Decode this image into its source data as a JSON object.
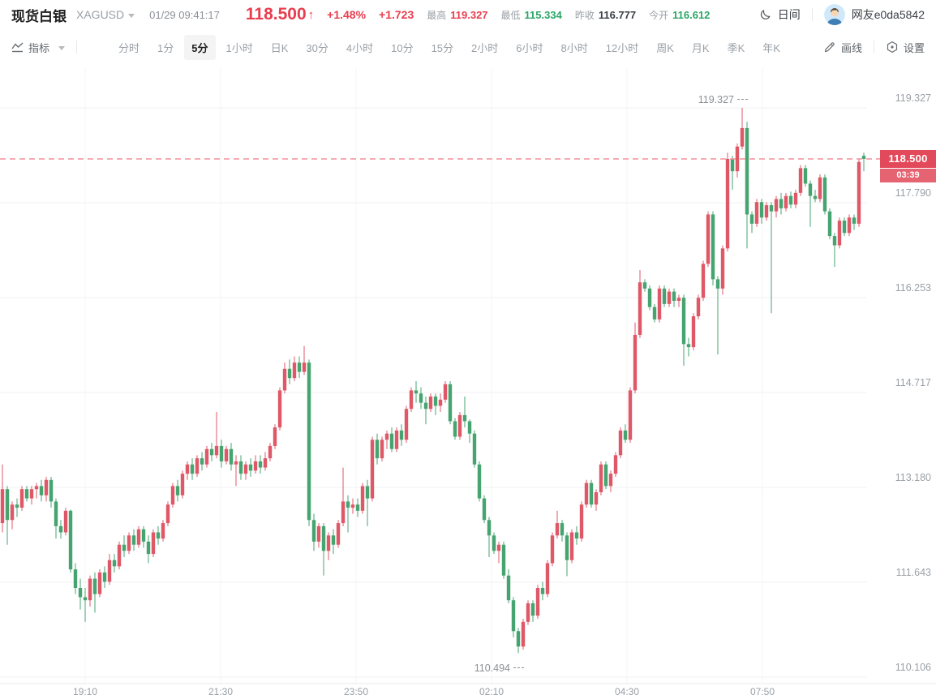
{
  "header": {
    "title": "现货白银",
    "symbol": "XAGUSD",
    "datetime": "01/29 09:41:17",
    "price": "118.500",
    "arrow": "↑",
    "change_pct": "+1.48%",
    "change_abs": "+1.723",
    "stats": {
      "high_label": "最高",
      "high": "119.327",
      "low_label": "最低",
      "low": "115.334",
      "prev_close_label": "昨收",
      "prev_close": "116.777",
      "open_label": "今开",
      "open": "116.612"
    },
    "theme_toggle_label": "日间",
    "username": "网友e0da5842"
  },
  "toolbar": {
    "indicator_label": "指标",
    "timeframes": [
      "分时",
      "1分",
      "5分",
      "1小时",
      "日K",
      "30分",
      "4小时",
      "10分",
      "15分",
      "2小时",
      "6小时",
      "8小时",
      "12小时",
      "周K",
      "月K",
      "季K",
      "年K"
    ],
    "active_timeframe": "5分",
    "draw_label": "画线",
    "settings_label": "设置"
  },
  "chart_data": {
    "type": "candlestick",
    "symbol": "XAGUSD",
    "interval": "5分",
    "current_price": "118.500",
    "current_price_value": 118.5,
    "countdown": "03:39",
    "up_color": "#df5868",
    "down_color": "#46a470",
    "y_axis_top_value": 119.327,
    "y_axis_step_value": 1.537,
    "y_axis_labels": [
      "119.327",
      "117.790",
      "116.253",
      "114.717",
      "113.180",
      "111.643",
      "110.106"
    ],
    "x_axis_labels": [
      "19:10",
      "21:30",
      "23:50",
      "02:10",
      "04:30",
      "07:50"
    ],
    "annotations": {
      "high": {
        "text": "119.327",
        "candle_index": 152
      },
      "low": {
        "text": "110.494",
        "candle_index": 106
      }
    },
    "candles": [
      [
        112.6,
        113.55,
        112.45,
        113.15
      ],
      [
        113.15,
        113.2,
        112.25,
        112.65
      ],
      [
        112.65,
        112.95,
        112.5,
        112.9
      ],
      [
        112.9,
        113.0,
        112.7,
        112.85
      ],
      [
        112.85,
        113.2,
        112.8,
        113.15
      ],
      [
        113.15,
        113.2,
        112.95,
        113.0
      ],
      [
        113.0,
        113.2,
        112.9,
        113.15
      ],
      [
        113.15,
        113.25,
        113.0,
        113.2
      ],
      [
        113.2,
        113.3,
        112.95,
        113.05
      ],
      [
        113.05,
        113.35,
        112.95,
        113.3
      ],
      [
        113.3,
        113.35,
        112.85,
        112.95
      ],
      [
        112.95,
        113.0,
        112.35,
        112.55
      ],
      [
        112.55,
        112.65,
        112.35,
        112.45
      ],
      [
        112.45,
        112.85,
        112.4,
        112.8
      ],
      [
        112.8,
        112.82,
        111.8,
        111.85
      ],
      [
        111.85,
        111.95,
        111.45,
        111.55
      ],
      [
        111.55,
        111.7,
        111.2,
        111.4
      ],
      [
        111.4,
        111.55,
        111.0,
        111.35
      ],
      [
        111.35,
        111.75,
        111.25,
        111.7
      ],
      [
        111.7,
        111.8,
        111.15,
        111.45
      ],
      [
        111.45,
        111.85,
        111.4,
        111.8
      ],
      [
        111.8,
        111.9,
        111.55,
        111.65
      ],
      [
        111.65,
        112.1,
        111.6,
        112.0
      ],
      [
        112.0,
        112.1,
        111.8,
        111.9
      ],
      [
        111.9,
        112.3,
        111.85,
        112.25
      ],
      [
        112.25,
        112.4,
        112.05,
        112.15
      ],
      [
        112.15,
        112.45,
        112.1,
        112.4
      ],
      [
        112.4,
        112.5,
        112.15,
        112.25
      ],
      [
        112.25,
        112.55,
        112.2,
        112.5
      ],
      [
        112.5,
        112.55,
        112.2,
        112.3
      ],
      [
        112.3,
        112.4,
        111.95,
        112.1
      ],
      [
        112.1,
        112.5,
        112.05,
        112.45
      ],
      [
        112.45,
        112.55,
        112.25,
        112.35
      ],
      [
        112.35,
        112.65,
        112.3,
        112.6
      ],
      [
        112.6,
        112.95,
        112.55,
        112.9
      ],
      [
        112.9,
        113.25,
        112.85,
        113.2
      ],
      [
        113.2,
        113.3,
        112.95,
        113.05
      ],
      [
        113.05,
        113.45,
        113.0,
        113.4
      ],
      [
        113.4,
        113.6,
        113.3,
        113.55
      ],
      [
        113.55,
        113.65,
        113.3,
        113.4
      ],
      [
        113.4,
        113.7,
        113.35,
        113.65
      ],
      [
        113.65,
        113.75,
        113.45,
        113.55
      ],
      [
        113.55,
        113.85,
        113.5,
        113.8
      ],
      [
        113.8,
        113.9,
        113.6,
        113.7
      ],
      [
        113.7,
        114.4,
        113.65,
        113.85
      ],
      [
        113.85,
        113.95,
        113.5,
        113.6
      ],
      [
        113.6,
        113.85,
        113.55,
        113.8
      ],
      [
        113.8,
        113.9,
        113.45,
        113.55
      ],
      [
        113.55,
        113.7,
        113.2,
        113.6
      ],
      [
        113.6,
        113.7,
        113.3,
        113.4
      ],
      [
        113.4,
        113.6,
        113.3,
        113.55
      ],
      [
        113.55,
        113.65,
        113.35,
        113.45
      ],
      [
        113.45,
        113.7,
        113.4,
        113.6
      ],
      [
        113.6,
        113.7,
        113.4,
        113.5
      ],
      [
        113.5,
        113.75,
        113.45,
        113.65
      ],
      [
        113.65,
        113.9,
        113.6,
        113.85
      ],
      [
        113.85,
        114.2,
        113.8,
        114.15
      ],
      [
        114.15,
        114.8,
        114.1,
        114.75
      ],
      [
        114.75,
        115.2,
        114.7,
        115.1
      ],
      [
        115.1,
        115.25,
        114.85,
        114.95
      ],
      [
        114.95,
        115.3,
        114.9,
        115.2
      ],
      [
        115.2,
        115.3,
        114.95,
        115.05
      ],
      [
        115.05,
        115.47,
        115.0,
        115.2
      ],
      [
        115.2,
        115.25,
        112.55,
        112.65
      ],
      [
        112.65,
        112.75,
        112.15,
        112.3
      ],
      [
        112.3,
        112.6,
        112.2,
        112.55
      ],
      [
        112.55,
        112.6,
        111.75,
        112.15
      ],
      [
        112.15,
        112.45,
        112.0,
        112.4
      ],
      [
        112.4,
        112.5,
        112.1,
        112.25
      ],
      [
        112.25,
        112.65,
        112.2,
        112.6
      ],
      [
        112.6,
        113.5,
        112.55,
        112.95
      ],
      [
        112.95,
        113.05,
        112.45,
        112.85
      ],
      [
        112.85,
        113.0,
        112.75,
        112.9
      ],
      [
        112.9,
        113.0,
        112.7,
        112.8
      ],
      [
        112.8,
        113.25,
        112.75,
        113.2
      ],
      [
        113.2,
        113.3,
        112.55,
        113.0
      ],
      [
        113.0,
        114.0,
        112.95,
        113.95
      ],
      [
        113.95,
        114.05,
        113.55,
        113.65
      ],
      [
        113.65,
        114.0,
        113.6,
        113.95
      ],
      [
        113.95,
        114.1,
        113.8,
        114.05
      ],
      [
        114.05,
        114.15,
        113.75,
        113.8
      ],
      [
        113.8,
        114.15,
        113.75,
        114.1
      ],
      [
        114.1,
        114.2,
        113.85,
        113.95
      ],
      [
        113.95,
        114.5,
        113.9,
        114.45
      ],
      [
        114.45,
        114.8,
        114.4,
        114.75
      ],
      [
        114.75,
        114.9,
        114.55,
        114.7
      ],
      [
        114.7,
        114.8,
        114.45,
        114.55
      ],
      [
        114.55,
        114.65,
        114.2,
        114.45
      ],
      [
        114.45,
        114.7,
        114.4,
        114.65
      ],
      [
        114.65,
        114.7,
        114.35,
        114.5
      ],
      [
        114.5,
        114.7,
        114.4,
        114.6
      ],
      [
        114.6,
        114.9,
        114.55,
        114.85
      ],
      [
        114.85,
        114.9,
        114.2,
        114.25
      ],
      [
        114.25,
        114.3,
        113.95,
        114.0
      ],
      [
        114.0,
        114.4,
        113.95,
        114.35
      ],
      [
        114.35,
        114.65,
        114.15,
        114.25
      ],
      [
        114.25,
        114.28,
        113.9,
        114.05
      ],
      [
        114.05,
        114.1,
        113.5,
        113.55
      ],
      [
        113.55,
        113.6,
        112.95,
        113.0
      ],
      [
        113.0,
        113.05,
        112.6,
        112.65
      ],
      [
        112.65,
        112.7,
        112.05,
        112.4
      ],
      [
        112.4,
        112.45,
        112.1,
        112.15
      ],
      [
        112.15,
        112.3,
        111.95,
        112.25
      ],
      [
        112.25,
        112.3,
        111.7,
        111.75
      ],
      [
        111.75,
        111.85,
        111.3,
        111.35
      ],
      [
        111.35,
        111.4,
        110.75,
        110.85
      ],
      [
        110.85,
        110.9,
        110.494,
        110.6
      ],
      [
        110.6,
        111.05,
        110.55,
        111.0
      ],
      [
        111.0,
        111.35,
        110.95,
        111.3
      ],
      [
        111.3,
        111.35,
        111.0,
        111.1
      ],
      [
        111.1,
        111.6,
        111.05,
        111.55
      ],
      [
        111.55,
        111.65,
        111.35,
        111.45
      ],
      [
        111.45,
        112.0,
        111.4,
        111.95
      ],
      [
        111.95,
        112.45,
        111.9,
        112.4
      ],
      [
        112.4,
        112.8,
        112.35,
        112.6
      ],
      [
        112.6,
        112.65,
        112.3,
        112.4
      ],
      [
        112.4,
        112.45,
        111.74,
        112.0
      ],
      [
        112.0,
        112.5,
        111.95,
        112.45
      ],
      [
        112.45,
        112.55,
        112.25,
        112.35
      ],
      [
        112.35,
        112.95,
        112.3,
        112.9
      ],
      [
        112.9,
        113.3,
        112.85,
        113.25
      ],
      [
        113.25,
        113.3,
        112.85,
        112.9
      ],
      [
        112.9,
        113.15,
        112.8,
        113.1
      ],
      [
        113.1,
        113.6,
        113.05,
        113.55
      ],
      [
        113.55,
        113.6,
        113.15,
        113.2
      ],
      [
        113.2,
        113.45,
        113.1,
        113.4
      ],
      [
        113.4,
        113.75,
        113.35,
        113.7
      ],
      [
        113.7,
        114.15,
        113.65,
        114.1
      ],
      [
        114.1,
        114.2,
        113.9,
        113.95
      ],
      [
        113.95,
        114.8,
        113.9,
        114.75
      ],
      [
        114.75,
        115.85,
        114.7,
        115.65
      ],
      [
        115.65,
        116.7,
        115.6,
        116.5
      ],
      [
        116.5,
        116.55,
        116.35,
        116.4
      ],
      [
        116.4,
        116.45,
        116.05,
        116.1
      ],
      [
        116.1,
        116.15,
        115.85,
        115.9
      ],
      [
        115.9,
        116.45,
        115.85,
        116.4
      ],
      [
        116.4,
        116.45,
        116.1,
        116.15
      ],
      [
        116.15,
        116.4,
        116.1,
        116.35
      ],
      [
        116.35,
        116.4,
        116.1,
        116.2
      ],
      [
        116.2,
        116.3,
        116.1,
        116.25
      ],
      [
        116.25,
        116.3,
        115.15,
        115.5
      ],
      [
        115.5,
        115.6,
        115.3,
        115.45
      ],
      [
        115.45,
        116.0,
        115.4,
        115.95
      ],
      [
        115.95,
        116.3,
        115.9,
        116.25
      ],
      [
        116.25,
        116.85,
        116.2,
        116.8
      ],
      [
        116.8,
        117.65,
        116.75,
        117.6
      ],
      [
        117.6,
        117.65,
        116.45,
        116.55
      ],
      [
        116.55,
        116.6,
        115.334,
        116.4
      ],
      [
        116.4,
        117.1,
        116.3,
        117.05
      ],
      [
        117.05,
        118.6,
        117.0,
        118.5
      ],
      [
        118.5,
        118.55,
        118.0,
        118.3
      ],
      [
        118.3,
        118.75,
        118.2,
        118.7
      ],
      [
        118.7,
        119.327,
        118.65,
        119.0
      ],
      [
        119.0,
        119.1,
        117.05,
        117.6
      ],
      [
        117.6,
        117.65,
        117.3,
        117.45
      ],
      [
        117.45,
        117.85,
        117.4,
        117.8
      ],
      [
        117.8,
        117.85,
        117.45,
        117.55
      ],
      [
        117.55,
        117.8,
        117.5,
        117.75
      ],
      [
        117.75,
        117.8,
        116.0,
        117.65
      ],
      [
        117.65,
        117.9,
        117.55,
        117.85
      ],
      [
        117.85,
        117.95,
        117.6,
        117.7
      ],
      [
        117.7,
        117.95,
        117.65,
        117.9
      ],
      [
        117.9,
        117.97,
        117.7,
        117.76
      ],
      [
        117.76,
        118.0,
        117.7,
        117.95
      ],
      [
        117.95,
        118.4,
        117.9,
        118.35
      ],
      [
        118.35,
        118.4,
        118.05,
        118.1
      ],
      [
        118.1,
        118.15,
        117.4,
        117.9
      ],
      [
        117.9,
        118.0,
        117.8,
        117.85
      ],
      [
        117.85,
        118.25,
        117.8,
        118.2
      ],
      [
        118.2,
        118.25,
        117.6,
        117.65
      ],
      [
        117.65,
        117.7,
        117.2,
        117.25
      ],
      [
        117.25,
        117.3,
        116.75,
        117.1
      ],
      [
        117.1,
        117.55,
        117.05,
        117.5
      ],
      [
        117.5,
        117.55,
        117.25,
        117.3
      ],
      [
        117.3,
        117.6,
        117.25,
        117.55
      ],
      [
        117.55,
        117.6,
        117.35,
        117.45
      ],
      [
        117.45,
        118.5,
        117.4,
        118.45
      ],
      [
        118.55,
        118.6,
        118.3,
        118.5
      ]
    ]
  }
}
